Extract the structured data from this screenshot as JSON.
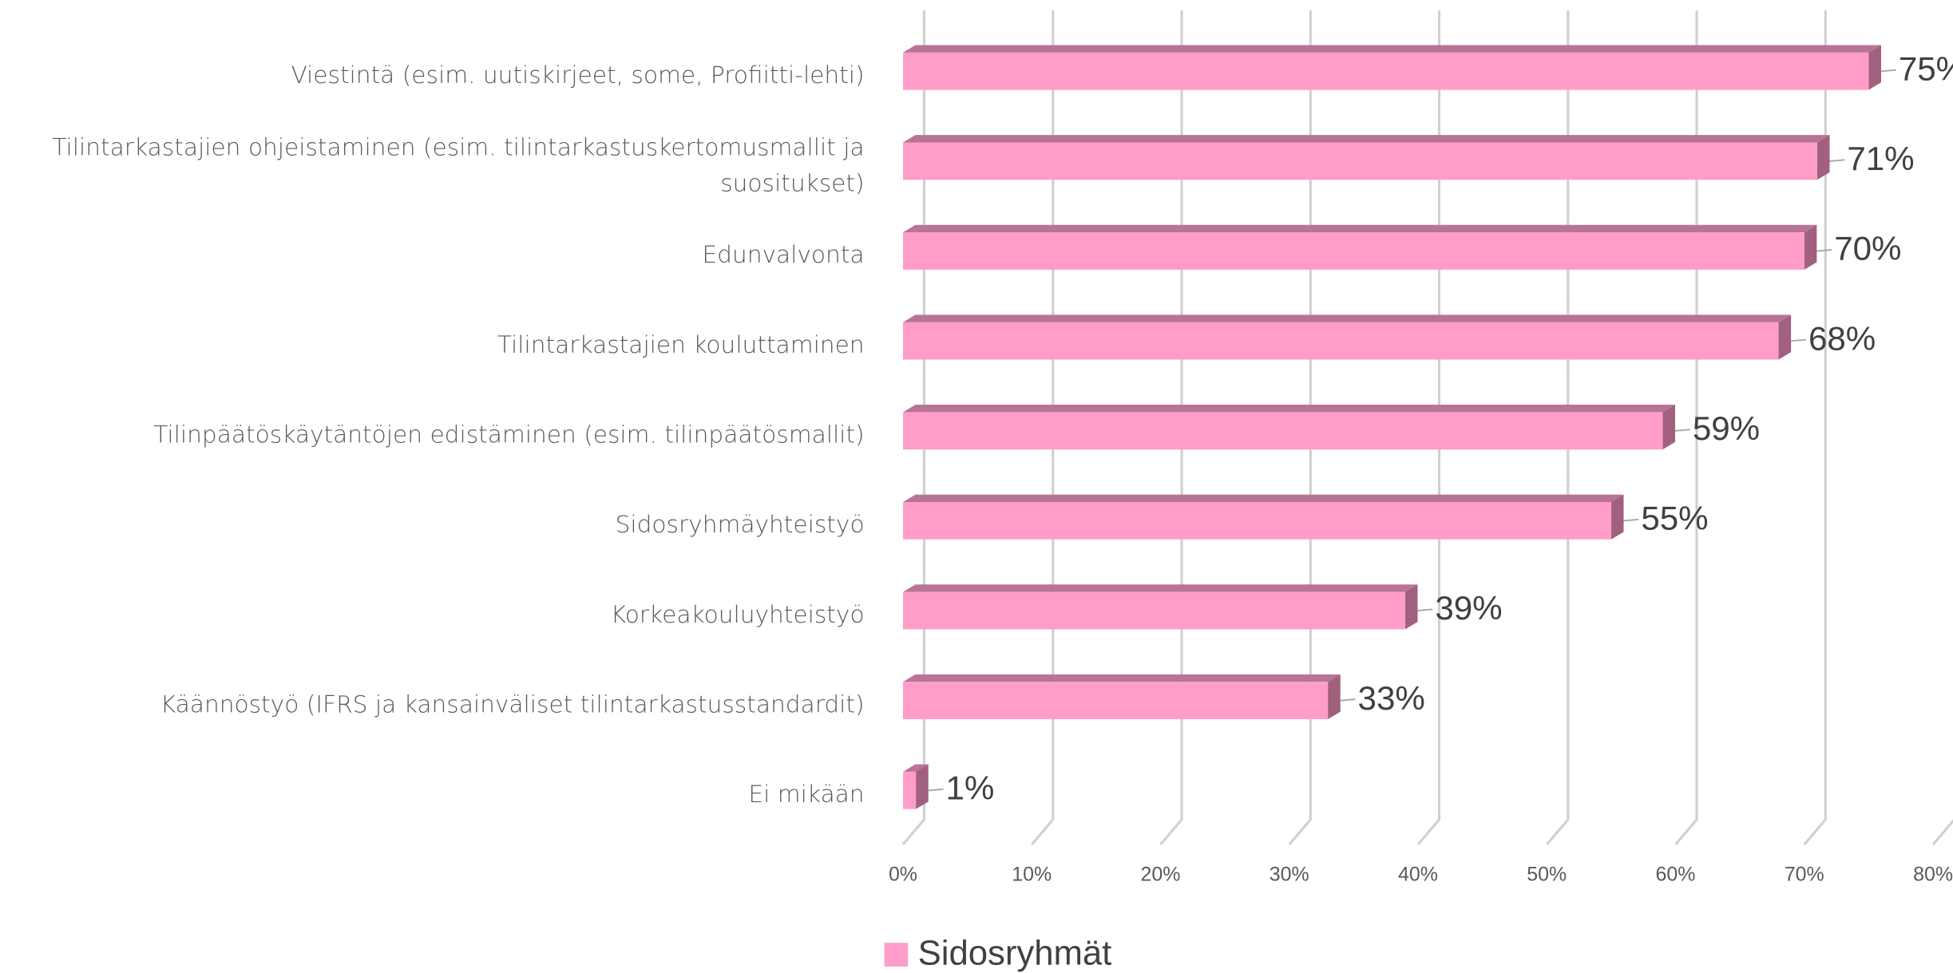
{
  "chart_data": {
    "type": "bar",
    "orientation": "horizontal",
    "categories": [
      "Viestintä (esim. uutiskirjeet, some, Profiitti-lehti)",
      "Tilintarkastajien ohjeistaminen (esim. tilintarkastuskertomusmallit ja suositukset)",
      "Edunvalvonta",
      "Tilintarkastajien kouluttaminen",
      "Tilinpäätöskäytäntöjen edistäminen (esim. tilinpäätösmallit)",
      "Sidosryhmäyhteistyö",
      "Korkeakouluyhteistyö",
      "Käännöstyö (IFRS ja kansainväliset tilintarkastusstandardit)",
      "Ei mikään"
    ],
    "series": [
      {
        "name": "Sidosryhmät",
        "color": "#ff9dc8",
        "values": [
          75,
          71,
          70,
          68,
          59,
          55,
          39,
          33,
          1
        ],
        "value_labels": [
          "75%",
          "71%",
          "70%",
          "68%",
          "59%",
          "55%",
          "39%",
          "33%",
          "1%"
        ]
      }
    ],
    "xlim": [
      0,
      80
    ],
    "xticks": [
      {
        "value": 0,
        "label": "0%"
      },
      {
        "value": 10,
        "label": "10%"
      },
      {
        "value": 20,
        "label": "20%"
      },
      {
        "value": 30,
        "label": "30%"
      },
      {
        "value": 40,
        "label": "40%"
      },
      {
        "value": 50,
        "label": "50%"
      },
      {
        "value": 60,
        "label": "60%"
      },
      {
        "value": 70,
        "label": "70%"
      },
      {
        "value": 80,
        "label": "80%"
      }
    ],
    "grid": true,
    "legend": "bottom"
  }
}
